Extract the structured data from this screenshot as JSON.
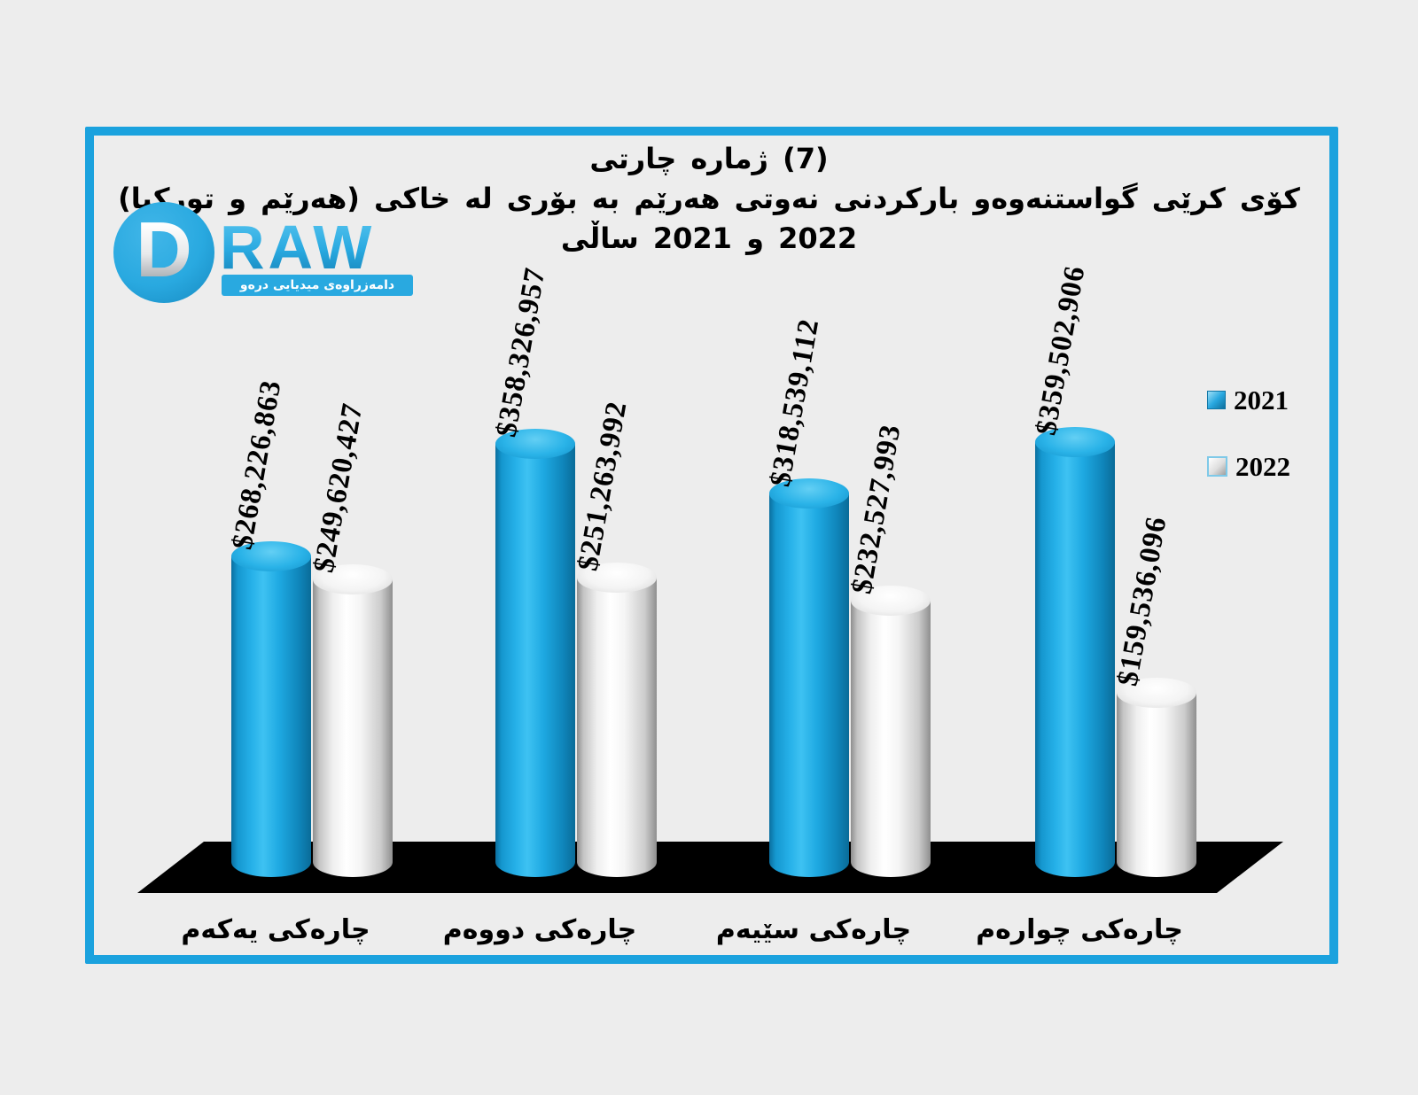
{
  "page": {
    "background": "#ededed"
  },
  "frame": {
    "border_color": "#1ba2de"
  },
  "title": {
    "line1": "چارتی ژماره (7)",
    "line2": "کۆی کرێی گواستنەوەو بارکردنی نەوتی هەرێم به بۆری له خاکی (هەرێم و تورکیا)",
    "line3": "ساڵی 2021 و 2022"
  },
  "logo": {
    "monogram": "D",
    "wordmark": "RAW",
    "tagline": "دامەزراوەی میدیایی درەو",
    "brand_color": "#29a9e0"
  },
  "legend": {
    "items": [
      {
        "label": "2021",
        "color": "#1a9fdb"
      },
      {
        "label": "2022",
        "color": "#f5f5f5"
      }
    ]
  },
  "chart_data": {
    "type": "bar",
    "style": "3d-cylinder",
    "title": "چارتی ژماره (7) — کۆی کرێی گواستنەوەو بارکردنی نەوتی هەرێم به بۆری له خاکی (هەرێم و تورکیا) — ساڵی 2021 و 2022",
    "categories": [
      "چارەکی یەکەم",
      "چارەکی دووەم",
      "چارەکی سێیەم",
      "چارەکی چوارەم"
    ],
    "series": [
      {
        "name": "2021",
        "color": "#18a4e0",
        "values": [
          268226863,
          358326957,
          318539112,
          359502906
        ],
        "data_labels": [
          "$268,226,863",
          "$358,326,957",
          "$318,539,112",
          "$359,502,906"
        ]
      },
      {
        "name": "2022",
        "color": "#f2f2f2",
        "values": [
          249620427,
          251263992,
          232527993,
          159536096
        ],
        "data_labels": [
          "$249,620,427",
          "$251,263,992",
          "$232,527,993",
          "$159,536,096"
        ]
      }
    ],
    "ylim": [
      0,
      359502906
    ],
    "xlabel": "",
    "ylabel": "",
    "grid": false,
    "legend_position": "right",
    "floor_color": "#000000"
  }
}
